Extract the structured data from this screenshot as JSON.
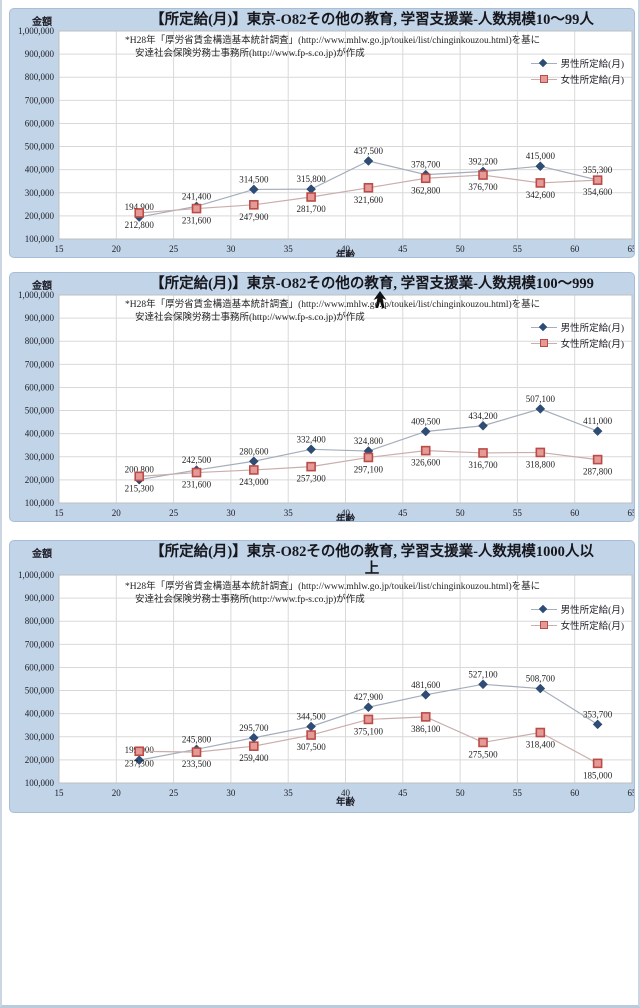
{
  "colors": {
    "panel_background": "#c1d4e8",
    "plot_background": "#ffffff",
    "gridline": "#d9d9d9",
    "axis_line": "#a6a6a6",
    "male_marker": "#2e4d76",
    "male_line": "#a3aebc",
    "female_marker_border": "#bc4b47",
    "female_marker_fill": "#e49a96",
    "female_line": "#c9aeac",
    "title_text": "#16161d",
    "label_text": "#1f1f1f"
  },
  "chart_data": [
    {
      "type": "line",
      "title_line1": "【所定給(月)】東京-O82その他の教育, 学習支援業-人数規模10～99人",
      "title_line2": "",
      "ylabel": "金額",
      "xlabel": "年齢",
      "note_line1": "*H28年「厚労省賃金構造基本統計調査」(http://www.mhlw.go.jp/toukei/list/chinginkouzou.html)を基に",
      "note_line2": "安達社会保険労務士事務所(http://www.fp-s.co.jp)が作成",
      "xlim": [
        15,
        65
      ],
      "ylim": [
        100000,
        1000000
      ],
      "grid": true,
      "legend_position": "top-right",
      "x_ticks": [
        "15",
        "20",
        "25",
        "30",
        "35",
        "40",
        "45",
        "50",
        "55",
        "60",
        "65"
      ],
      "y_ticks": [
        "1,000,000",
        "900,000",
        "800,000",
        "700,000",
        "600,000",
        "500,000",
        "400,000",
        "300,000",
        "200,000",
        "100,000"
      ],
      "x": [
        22,
        27,
        32,
        37,
        42,
        47,
        52,
        57,
        62
      ],
      "series": [
        {
          "name": "男性所定給(月)",
          "marker": "diamond",
          "marker_color": "#2e4d76",
          "line_color": "#a3aebc",
          "label_side": "above",
          "values": [
            194900,
            241400,
            314500,
            315800,
            437500,
            378700,
            392200,
            415000,
            355300
          ],
          "labels": [
            "194,900",
            "241,400",
            "314,500",
            "315,800",
            "437,500",
            "378,700",
            "392,200",
            "415,000",
            "355,300"
          ]
        },
        {
          "name": "女性所定給(月)",
          "marker": "square",
          "marker_color": "#bc4b47",
          "marker_fill": "#e49a96",
          "line_color": "#c9aeac",
          "label_side": "below",
          "values": [
            212800,
            231600,
            247900,
            281700,
            321600,
            362800,
            376700,
            342600,
            354600
          ],
          "labels": [
            "212,800",
            "231,600",
            "247,900",
            "281,700",
            "321,600",
            "362,800",
            "376,700",
            "342,600",
            "354,600"
          ]
        }
      ]
    },
    {
      "type": "line",
      "title_line1": "【所定給(月)】東京-O82その他の教育, 学習支援業-人数規模100～999",
      "title_line2": "",
      "ylabel": "金額",
      "xlabel": "年齢",
      "note_line1": "*H28年「厚労省賃金構造基本統計調査」(http://www.mhlw.go.jp/toukei/list/chinginkouzou.html)を基に",
      "note_line2": "安達社会保険労務士事務所(http://www.fp-s.co.jp)が作成",
      "xlim": [
        15,
        65
      ],
      "ylim": [
        100000,
        1000000
      ],
      "grid": true,
      "legend_position": "top-right",
      "x_ticks": [
        "15",
        "20",
        "25",
        "30",
        "35",
        "40",
        "45",
        "50",
        "55",
        "60",
        "65"
      ],
      "y_ticks": [
        "1,000,000",
        "900,000",
        "800,000",
        "700,000",
        "600,000",
        "500,000",
        "400,000",
        "300,000",
        "200,000",
        "100,000"
      ],
      "x": [
        22,
        27,
        32,
        37,
        42,
        47,
        52,
        57,
        62
      ],
      "series": [
        {
          "name": "男性所定給(月)",
          "marker": "diamond",
          "marker_color": "#2e4d76",
          "line_color": "#a3aebc",
          "label_side": "above",
          "values": [
            200800,
            242500,
            280600,
            332400,
            324800,
            409500,
            434200,
            507100,
            411000
          ],
          "labels": [
            "200,800",
            "242,500",
            "280,600",
            "332,400",
            "324,800",
            "409,500",
            "434,200",
            "507,100",
            "411,000"
          ]
        },
        {
          "name": "女性所定給(月)",
          "marker": "square",
          "marker_color": "#bc4b47",
          "marker_fill": "#e49a96",
          "line_color": "#c9aeac",
          "label_side": "below",
          "values": [
            215300,
            231600,
            243000,
            257300,
            297100,
            326600,
            316700,
            318800,
            287800
          ],
          "labels": [
            "215,300",
            "231,600",
            "243,000",
            "257,300",
            "297,100",
            "326,600",
            "316,700",
            "318,800",
            "287,800"
          ]
        }
      ]
    },
    {
      "type": "line",
      "title_line1": "【所定給(月)】東京-O82その他の教育, 学習支援業-人数規模1000人以",
      "title_line2": "上",
      "ylabel": "金額",
      "xlabel": "年齢",
      "note_line1": "*H28年「厚労省賃金構造基本統計調査」(http://www.mhlw.go.jp/toukei/list/chinginkouzou.html)を基に",
      "note_line2": "安達社会保険労務士事務所(http://www.fp-s.co.jp)が作成",
      "xlim": [
        15,
        65
      ],
      "ylim": [
        100000,
        1000000
      ],
      "grid": true,
      "legend_position": "top-right",
      "x_ticks": [
        "15",
        "20",
        "25",
        "30",
        "35",
        "40",
        "45",
        "50",
        "55",
        "60",
        "65"
      ],
      "y_ticks": [
        "1,000,000",
        "900,000",
        "800,000",
        "700,000",
        "600,000",
        "500,000",
        "400,000",
        "300,000",
        "200,000",
        "100,000"
      ],
      "x": [
        22,
        27,
        32,
        37,
        42,
        47,
        52,
        57,
        62
      ],
      "series": [
        {
          "name": "男性所定給(月)",
          "marker": "diamond",
          "marker_color": "#2e4d76",
          "line_color": "#a3aebc",
          "label_side": "above",
          "values": [
            199000,
            245800,
            295700,
            344500,
            427900,
            481600,
            527100,
            508700,
            353700
          ],
          "labels": [
            "199,000",
            "245,800",
            "295,700",
            "344,500",
            "427,900",
            "481,600",
            "527,100",
            "508,700",
            "353,700"
          ]
        },
        {
          "name": "女性所定給(月)",
          "marker": "square",
          "marker_color": "#bc4b47",
          "marker_fill": "#e49a96",
          "line_color": "#c9aeac",
          "label_side": "below",
          "values": [
            237300,
            233500,
            259400,
            307500,
            375100,
            386100,
            275500,
            318400,
            185000
          ],
          "labels": [
            "237,300",
            "233,500",
            "259,400",
            "307,500",
            "375,100",
            "386,100",
            "275,500",
            "318,400",
            "185,000"
          ]
        }
      ]
    }
  ]
}
